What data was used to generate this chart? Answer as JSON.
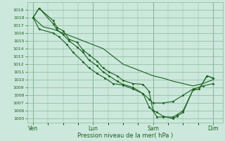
{
  "background_color": "#cce8dc",
  "grid_color": "#88b898",
  "line_color": "#1a6020",
  "marker_color": "#1a6020",
  "xlabel": "Pression niveau de la mer( hPa )",
  "ylim": [
    1004.5,
    1020.0
  ],
  "yticks": [
    1005,
    1006,
    1007,
    1008,
    1009,
    1010,
    1011,
    1012,
    1013,
    1014,
    1015,
    1016,
    1017,
    1018,
    1019
  ],
  "xtick_labels": [
    "Ven",
    "Lun",
    "Sam",
    "Dim"
  ],
  "series1_x": [
    0.0,
    0.3,
    1.0,
    1.2,
    1.5,
    1.8,
    2.2,
    2.5,
    2.8,
    3.2,
    3.5,
    3.8,
    4.2,
    4.5,
    5.0,
    5.5,
    5.8,
    6.0,
    6.2,
    6.5,
    7.0,
    7.2,
    7.5,
    8.0,
    8.3,
    8.7,
    9.0
  ],
  "series1_y": [
    1018.0,
    1019.2,
    1017.6,
    1016.7,
    1016.3,
    1015.2,
    1014.8,
    1013.8,
    1013.2,
    1012.4,
    1011.5,
    1011.0,
    1010.5,
    1009.9,
    1009.5,
    1009.4,
    1008.5,
    1006.0,
    1005.8,
    1005.3,
    1005.0,
    1005.3,
    1005.8,
    1008.7,
    1008.8,
    1010.5,
    1010.2
  ],
  "series2_x": [
    0.0,
    0.3,
    1.0,
    1.2,
    1.5,
    1.8,
    2.2,
    2.5,
    2.8,
    3.2,
    3.5,
    3.8,
    4.2,
    4.5,
    5.0,
    5.5,
    5.8,
    6.0,
    6.2,
    6.5,
    7.0,
    7.2,
    7.5,
    8.0,
    8.3,
    8.7,
    9.0
  ],
  "series2_y": [
    1018.0,
    1019.2,
    1017.2,
    1016.4,
    1015.8,
    1015.0,
    1014.2,
    1013.5,
    1012.5,
    1011.8,
    1011.0,
    1010.5,
    1009.8,
    1009.4,
    1009.0,
    1008.2,
    1006.5,
    1006.0,
    1005.2,
    1005.2,
    1005.2,
    1005.5,
    1006.0,
    1008.7,
    1008.8,
    1010.5,
    1010.2
  ],
  "series3_x": [
    0.0,
    0.3,
    1.0,
    1.3,
    1.7,
    2.0,
    2.5,
    2.8,
    3.2,
    3.6,
    4.0,
    4.5,
    5.0,
    5.5,
    5.8,
    6.0,
    6.5,
    7.0,
    7.5,
    8.0,
    8.5,
    9.0
  ],
  "series3_y": [
    1018.0,
    1016.5,
    1016.0,
    1015.5,
    1014.5,
    1013.5,
    1012.3,
    1011.5,
    1010.8,
    1010.2,
    1009.5,
    1009.3,
    1008.8,
    1008.2,
    1007.5,
    1007.0,
    1007.0,
    1007.2,
    1008.0,
    1008.8,
    1009.2,
    1009.5
  ],
  "series4_x": [
    0.0,
    0.5,
    1.0,
    1.5,
    2.0,
    2.5,
    3.0,
    3.5,
    4.0,
    4.5,
    5.0,
    5.5,
    6.0,
    6.5,
    7.0,
    7.5,
    8.0,
    8.5,
    9.0
  ],
  "series4_y": [
    1018.0,
    1016.8,
    1016.5,
    1016.0,
    1015.5,
    1015.0,
    1014.5,
    1014.0,
    1013.0,
    1012.0,
    1011.5,
    1011.0,
    1010.5,
    1010.2,
    1009.8,
    1009.5,
    1009.2,
    1009.5,
    1010.0
  ]
}
